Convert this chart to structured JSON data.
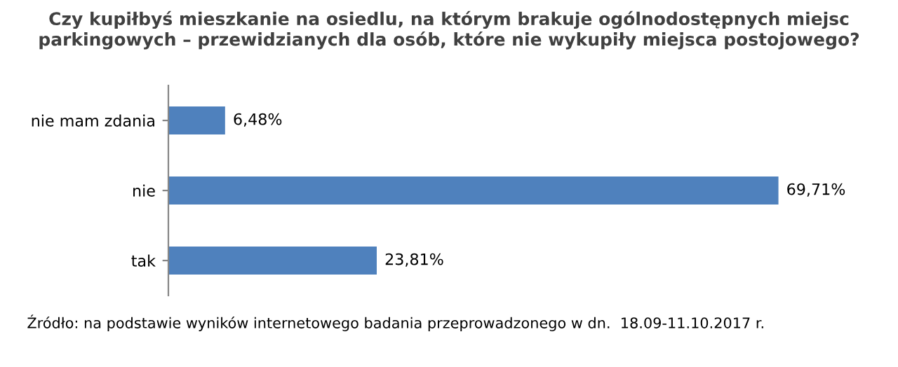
{
  "chart_data": {
    "type": "bar",
    "orientation": "horizontal",
    "title": "Czy kupiłbyś mieszkanie na osiedlu, na którym brakuje ogólnodostępnych miejsc parkingowych – przewidzianych dla osób, które nie wykupiły miejsca postojowego?",
    "categories": [
      "nie mam zdania",
      "nie",
      "tak"
    ],
    "values": [
      6.48,
      69.71,
      23.81
    ],
    "value_labels": [
      "6,48%",
      "69,71%",
      "23,81%"
    ],
    "color": "#4f81bd",
    "grid": false,
    "legend": false,
    "tick_labels": "y",
    "annotations": [
      "Źródło: na podstawie wyników internetowego badania przeprowadzonego w dn.  18.09-11.10.2017 r."
    ]
  }
}
